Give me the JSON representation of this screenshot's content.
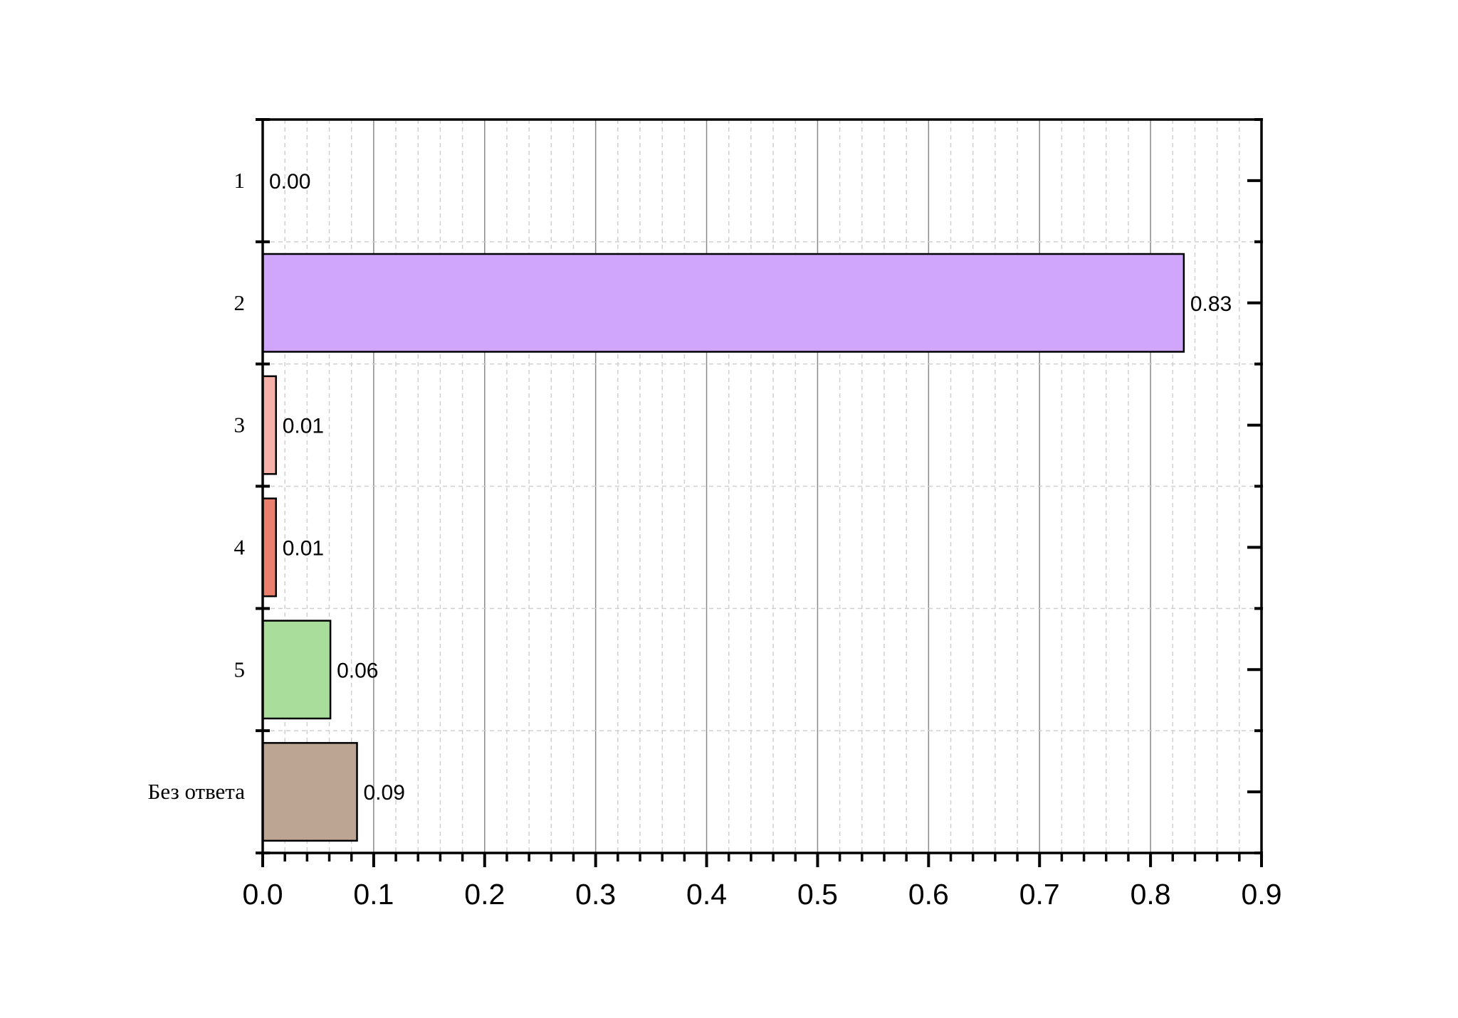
{
  "chart_data": {
    "type": "bar",
    "orientation": "horizontal",
    "title": "",
    "xlabel": "",
    "ylabel": "",
    "categories": [
      "1",
      "2",
      "3",
      "4",
      "5",
      "Без ответа"
    ],
    "values": [
      0.0,
      0.83,
      0.012,
      0.012,
      0.061,
      0.085
    ],
    "data_labels": [
      "0.00",
      "0.83",
      "0.01",
      "0.01",
      "0.06",
      "0.09"
    ],
    "colors": [
      "#ffffff",
      "#cfa6fc",
      "#f5b0a8",
      "#eb7f6e",
      "#a8dd9c",
      "#bca592"
    ],
    "xlim": [
      0,
      0.9
    ],
    "x_ticks": [
      "0.0",
      "0.1",
      "0.2",
      "0.3",
      "0.4",
      "0.5",
      "0.6",
      "0.7",
      "0.8",
      "0.9"
    ],
    "grid": true,
    "legend": "none"
  }
}
